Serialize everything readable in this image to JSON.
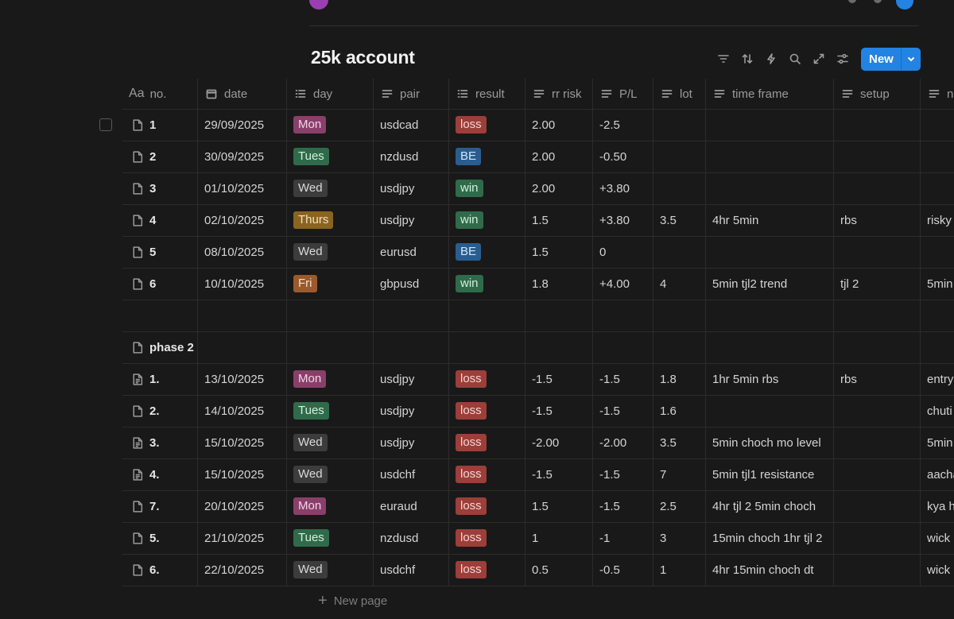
{
  "page": {
    "title": "25k account"
  },
  "toolbar": {
    "new_label": "New"
  },
  "columns": [
    {
      "key": "no",
      "label": "no.",
      "icon": "title-aa-icon"
    },
    {
      "key": "date",
      "label": "date",
      "icon": "calendar-icon"
    },
    {
      "key": "day",
      "label": "day",
      "icon": "list-icon"
    },
    {
      "key": "pair",
      "label": "pair",
      "icon": "text-icon"
    },
    {
      "key": "result",
      "label": "result",
      "icon": "list-icon"
    },
    {
      "key": "rr",
      "label": "rr risk",
      "icon": "text-icon"
    },
    {
      "key": "pl",
      "label": "P/L",
      "icon": "text-icon"
    },
    {
      "key": "lot",
      "label": "lot",
      "icon": "text-icon"
    },
    {
      "key": "tf",
      "label": "time frame",
      "icon": "text-icon"
    },
    {
      "key": "setup",
      "label": "setup",
      "icon": "text-icon"
    },
    {
      "key": "notes",
      "label": "n",
      "icon": "text-icon"
    }
  ],
  "rows": [
    {
      "no": "1",
      "date": "29/09/2025",
      "day": "Mon",
      "pair": "usdcad",
      "result": "loss",
      "rr": "2.00",
      "pl": "-2.5",
      "lot": "",
      "tf": "",
      "setup": "",
      "notes": ""
    },
    {
      "no": "2",
      "date": "30/09/2025",
      "day": "Tues",
      "pair": "nzdusd",
      "result": "BE",
      "rr": "2.00",
      "pl": "-0.50",
      "lot": "",
      "tf": "",
      "setup": "",
      "notes": ""
    },
    {
      "no": "3",
      "date": "01/10/2025",
      "day": "Wed",
      "pair": "usdjpy",
      "result": "win",
      "rr": "2.00",
      "pl": "+3.80",
      "lot": "",
      "tf": "",
      "setup": "",
      "notes": ""
    },
    {
      "no": "4",
      "date": "02/10/2025",
      "day": "Thurs",
      "pair": "usdjpy",
      "result": "win",
      "rr": "1.5",
      "pl": "+3.80",
      "lot": "3.5",
      "tf": "4hr 5min",
      "setup": "rbs",
      "notes": "risky"
    },
    {
      "no": "5",
      "date": "08/10/2025",
      "day": "Wed",
      "pair": "eurusd",
      "result": "BE",
      "rr": "1.5",
      "pl": "0",
      "lot": "",
      "tf": "",
      "setup": "",
      "notes": ""
    },
    {
      "no": "6",
      "date": "10/10/2025",
      "day": "Fri",
      "pair": "gbpusd",
      "result": "win",
      "rr": "1.8",
      "pl": "+4.00",
      "lot": "4",
      "tf": "5min tjl2 trend",
      "setup": "tjl 2",
      "notes": "5min"
    },
    {
      "no": "",
      "empty": true,
      "date": "",
      "day": "",
      "pair": "",
      "result": "",
      "rr": "",
      "pl": "",
      "lot": "",
      "tf": "",
      "setup": "",
      "notes": ""
    },
    {
      "no": "phase 2",
      "date": "",
      "day": "",
      "pair": "",
      "result": "",
      "rr": "",
      "pl": "",
      "lot": "",
      "tf": "",
      "setup": "",
      "notes": ""
    },
    {
      "no": "1.",
      "lined": true,
      "date": "13/10/2025",
      "day": "Mon",
      "pair": "usdjpy",
      "result": "loss",
      "rr": "-1.5",
      "pl": "-1.5",
      "lot": "1.8",
      "tf": "1hr 5min rbs",
      "setup": "rbs",
      "notes": "entry"
    },
    {
      "no": "2.",
      "date": "14/10/2025",
      "day": "Tues",
      "pair": "usdjpy",
      "result": "loss",
      "rr": "-1.5",
      "pl": "-1.5",
      "lot": "1.6",
      "tf": "",
      "setup": "",
      "notes": "chuti"
    },
    {
      "no": "3.",
      "lined": true,
      "date": "15/10/2025",
      "day": "Wed",
      "pair": "usdjpy",
      "result": "loss",
      "rr": "-2.00",
      "pl": "-2.00",
      "lot": "3.5",
      "tf": "5min choch mo level",
      "setup": "",
      "notes": "5min"
    },
    {
      "no": "4.",
      "lined": true,
      "date": "15/10/2025",
      "day": "Wed",
      "pair": "usdchf",
      "result": "loss",
      "rr": "-1.5",
      "pl": "-1.5",
      "lot": "7",
      "tf": "5min tjl1 resistance",
      "setup": "",
      "notes": "aacha"
    },
    {
      "no": "7.",
      "date": "20/10/2025",
      "day": "Mon",
      "pair": "euraud",
      "result": "loss",
      "rr": "1.5",
      "pl": "-1.5",
      "lot": "2.5",
      "tf": "4hr tjl 2 5min choch",
      "setup": "",
      "notes": "kya h"
    },
    {
      "no": "5.",
      "date": "21/10/2025",
      "day": "Tues",
      "pair": "nzdusd",
      "result": "loss",
      "rr": "1",
      "pl": "-1",
      "lot": "3",
      "tf": "15min choch 1hr tjl 2",
      "setup": "",
      "notes": "wick"
    },
    {
      "no": "6.",
      "date": "22/10/2025",
      "day": "Wed",
      "pair": "usdchf",
      "result": "loss",
      "rr": "0.5",
      "pl": "-0.5",
      "lot": "1",
      "tf": "4hr 15min choch dt",
      "setup": "",
      "notes": "wick"
    }
  ],
  "tag_colors": {
    "Mon": {
      "bg": "#8a3f6a",
      "fg": "#f0d6e6"
    },
    "Tues": {
      "bg": "#2f6b4a",
      "fg": "#d4f0de"
    },
    "Wed": {
      "bg": "#3c3c3c",
      "fg": "#d9d9d9"
    },
    "Thurs": {
      "bg": "#8a6420",
      "fg": "#f3e2bf"
    },
    "Fri": {
      "bg": "#9a5a2b",
      "fg": "#f5dcc6"
    },
    "loss": {
      "bg": "#9c3e3a",
      "fg": "#f6d5d2"
    },
    "BE": {
      "bg": "#2a5d8f",
      "fg": "#d2e6f8"
    },
    "win": {
      "bg": "#2f6b4a",
      "fg": "#d4f0de"
    }
  },
  "footer": {
    "new_page_label": "New page"
  }
}
